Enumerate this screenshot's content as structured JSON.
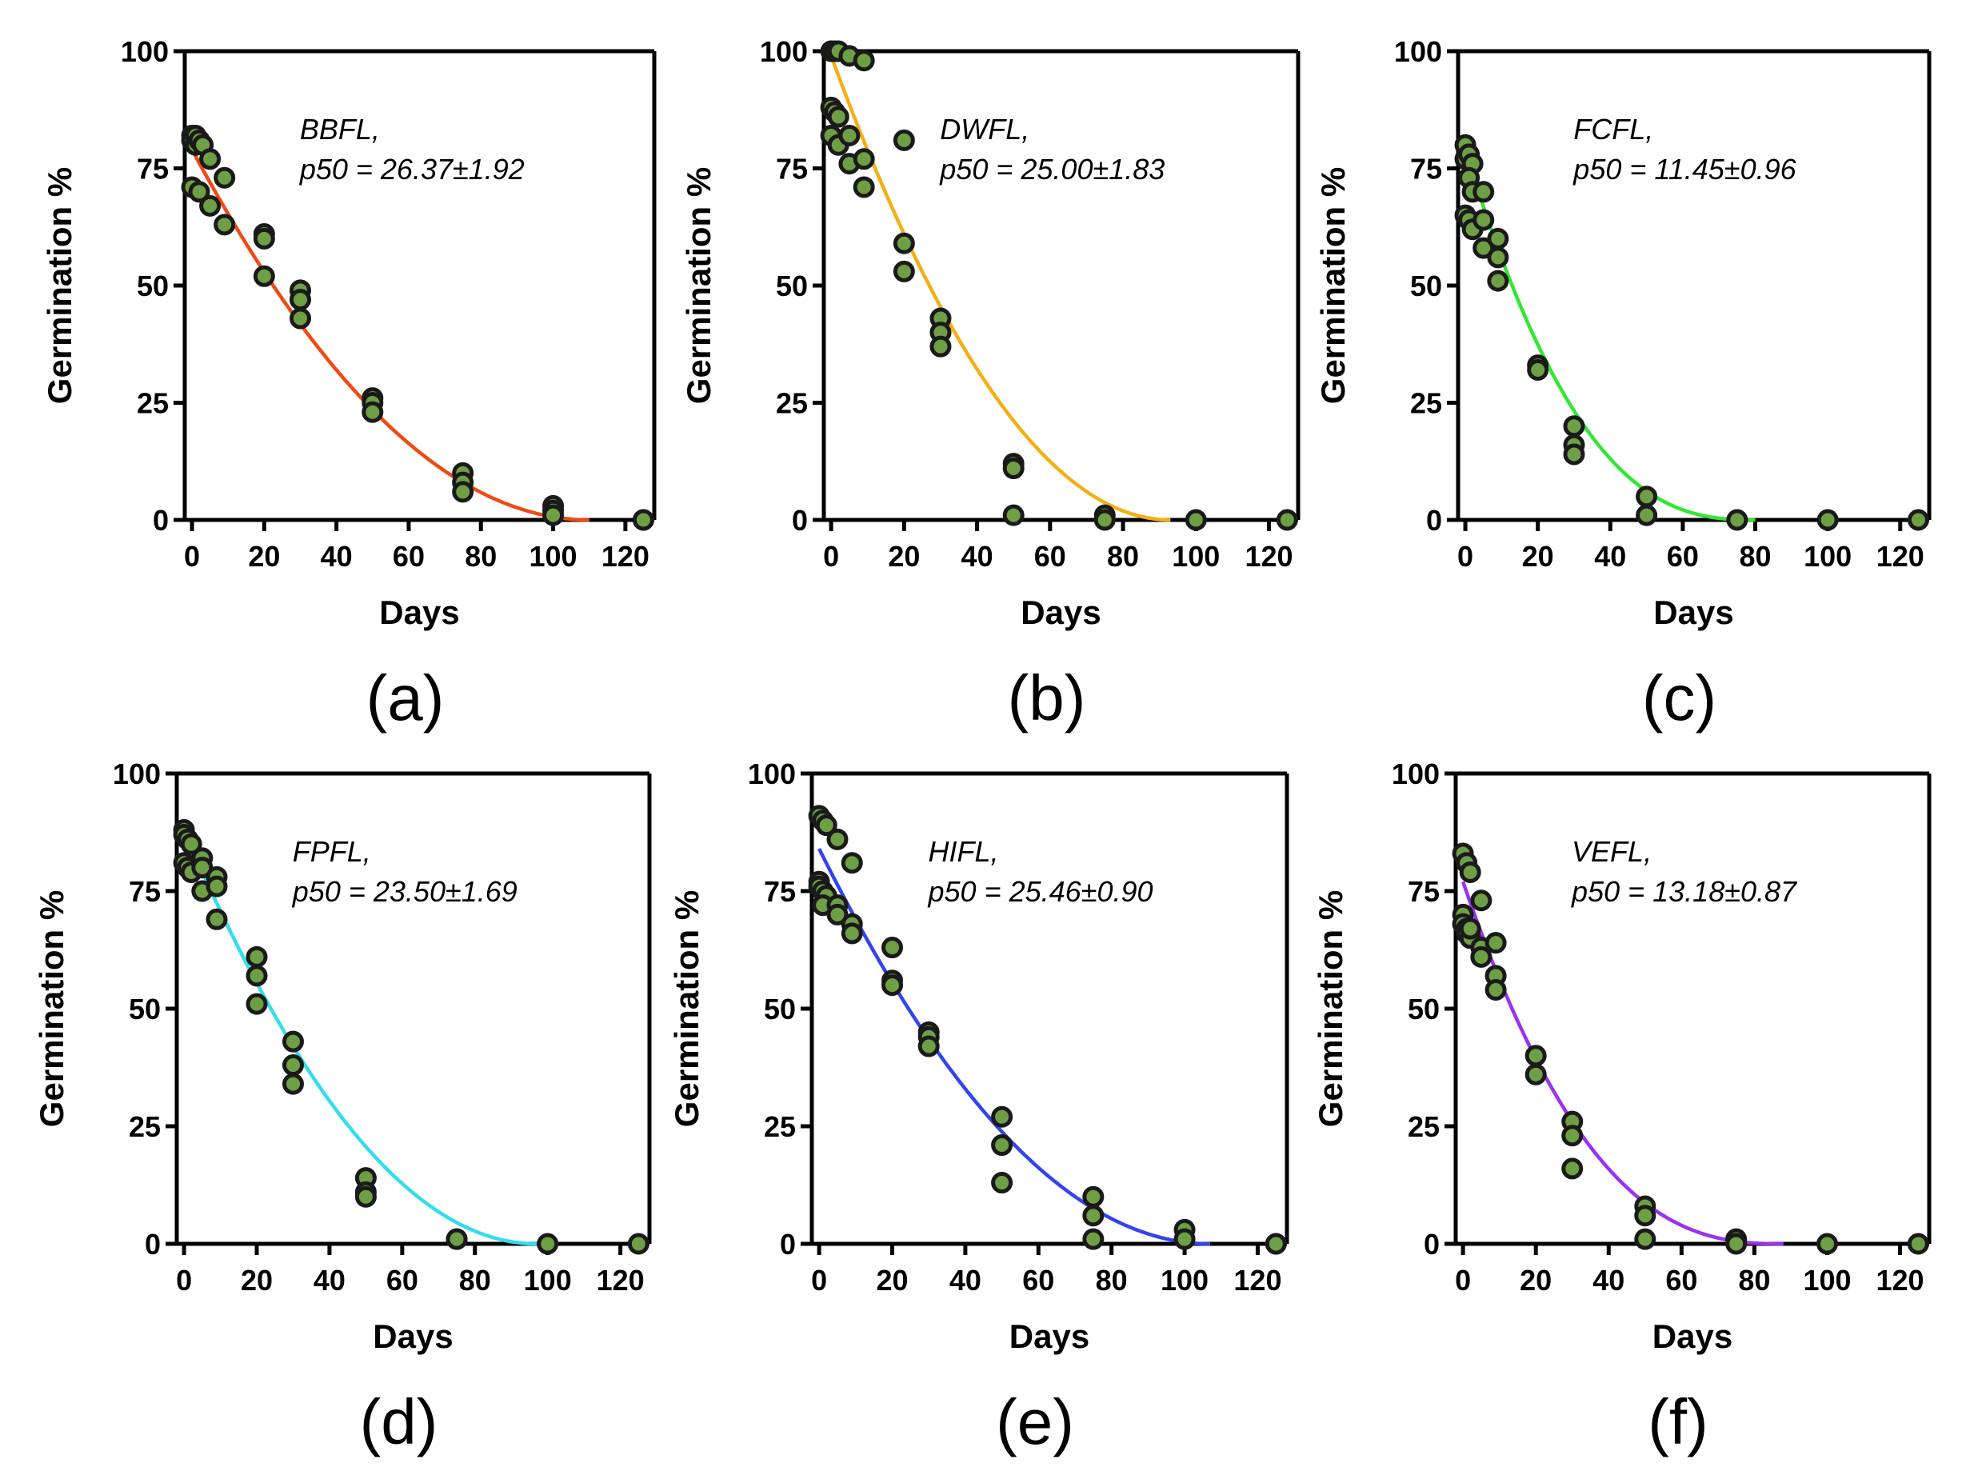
{
  "figure": {
    "marker_fill": "#6f9f45",
    "marker_stroke": "#1a1a1a",
    "axis_color": "#000000"
  },
  "chart_data": [
    {
      "type": "scatter",
      "panel_label": "(a)",
      "xlabel": "Days",
      "ylabel": "Germination %",
      "xlim": [
        -2,
        128
      ],
      "ylim": [
        0,
        100
      ],
      "xticks": [
        "0",
        "20",
        "40",
        "60",
        "80",
        "100",
        "120"
      ],
      "yticks": [
        "0",
        "25",
        "50",
        "75",
        "100"
      ],
      "annotation": [
        "BBFL,",
        "p50 = 26.37±1.92"
      ],
      "fit": {
        "color": "#f04a14",
        "a": 79,
        "end": 110,
        "power": 2.0
      },
      "points": [
        [
          0,
          82
        ],
        [
          0,
          81
        ],
        [
          1,
          82
        ],
        [
          1,
          80
        ],
        [
          2,
          81
        ],
        [
          3,
          80
        ],
        [
          0,
          71
        ],
        [
          2,
          70
        ],
        [
          5,
          77
        ],
        [
          5,
          67
        ],
        [
          9,
          73
        ],
        [
          9,
          63
        ],
        [
          20,
          61
        ],
        [
          20,
          60
        ],
        [
          20,
          52
        ],
        [
          30,
          49
        ],
        [
          30,
          47
        ],
        [
          30,
          43
        ],
        [
          50,
          26
        ],
        [
          50,
          25
        ],
        [
          50,
          23
        ],
        [
          75,
          10
        ],
        [
          75,
          8
        ],
        [
          75,
          6
        ],
        [
          100,
          3
        ],
        [
          100,
          2
        ],
        [
          100,
          1
        ],
        [
          125,
          0
        ],
        [
          125,
          0
        ]
      ]
    },
    {
      "type": "scatter",
      "panel_label": "(b)",
      "xlabel": "Days",
      "ylabel": "Germination %",
      "xlim": [
        -2,
        128
      ],
      "ylim": [
        0,
        100
      ],
      "xticks": [
        "0",
        "20",
        "40",
        "60",
        "80",
        "100",
        "120"
      ],
      "yticks": [
        "0",
        "25",
        "50",
        "75",
        "100"
      ],
      "annotation": [
        "DWFL,",
        "p50 = 25.00±1.83"
      ],
      "fit": {
        "color": "#f2b014",
        "a": 99,
        "end": 93,
        "power": 2.0
      },
      "points": [
        [
          0,
          100
        ],
        [
          1,
          100
        ],
        [
          2,
          100
        ],
        [
          5,
          99
        ],
        [
          9,
          98
        ],
        [
          0,
          88
        ],
        [
          1,
          87
        ],
        [
          2,
          86
        ],
        [
          0,
          82
        ],
        [
          2,
          80
        ],
        [
          5,
          82
        ],
        [
          5,
          76
        ],
        [
          9,
          77
        ],
        [
          9,
          71
        ],
        [
          20,
          81
        ],
        [
          20,
          59
        ],
        [
          20,
          53
        ],
        [
          30,
          43
        ],
        [
          30,
          40
        ],
        [
          30,
          37
        ],
        [
          50,
          12
        ],
        [
          50,
          11
        ],
        [
          50,
          1
        ],
        [
          75,
          1
        ],
        [
          75,
          0
        ],
        [
          100,
          0
        ],
        [
          125,
          0
        ]
      ]
    },
    {
      "type": "scatter",
      "panel_label": "(c)",
      "xlabel": "Days",
      "ylabel": "Germination %",
      "xlim": [
        -2,
        128
      ],
      "ylim": [
        0,
        100
      ],
      "xticks": [
        "0",
        "20",
        "40",
        "60",
        "80",
        "100",
        "120"
      ],
      "yticks": [
        "0",
        "25",
        "50",
        "75",
        "100"
      ],
      "annotation": [
        "FCFL,",
        "p50 = 11.45±0.96"
      ],
      "fit": {
        "color": "#33e633",
        "a": 79,
        "end": 80,
        "power": 2.6
      },
      "points": [
        [
          0,
          80
        ],
        [
          0,
          77
        ],
        [
          1,
          78
        ],
        [
          2,
          76
        ],
        [
          1,
          73
        ],
        [
          0,
          65
        ],
        [
          1,
          64
        ],
        [
          2,
          62
        ],
        [
          2,
          70
        ],
        [
          5,
          70
        ],
        [
          5,
          64
        ],
        [
          5,
          58
        ],
        [
          9,
          60
        ],
        [
          9,
          56
        ],
        [
          9,
          51
        ],
        [
          20,
          33
        ],
        [
          20,
          32
        ],
        [
          30,
          20
        ],
        [
          30,
          16
        ],
        [
          30,
          14
        ],
        [
          50,
          5
        ],
        [
          50,
          1
        ],
        [
          75,
          0
        ],
        [
          100,
          0
        ],
        [
          125,
          0
        ]
      ]
    },
    {
      "type": "scatter",
      "panel_label": "(d)",
      "xlabel": "Days",
      "ylabel": "Germination %",
      "xlim": [
        -2,
        128
      ],
      "ylim": [
        0,
        100
      ],
      "xticks": [
        "0",
        "20",
        "40",
        "60",
        "80",
        "100",
        "120"
      ],
      "yticks": [
        "0",
        "25",
        "50",
        "75",
        "100"
      ],
      "annotation": [
        "FPFL,",
        "p50 = 23.50±1.69"
      ],
      "fit": {
        "color": "#33ddee",
        "a": 88,
        "end": 97,
        "power": 2.0
      },
      "points": [
        [
          0,
          88
        ],
        [
          0,
          87
        ],
        [
          1,
          86
        ],
        [
          2,
          85
        ],
        [
          0,
          81
        ],
        [
          1,
          80
        ],
        [
          2,
          79
        ],
        [
          5,
          82
        ],
        [
          5,
          80
        ],
        [
          5,
          75
        ],
        [
          9,
          78
        ],
        [
          9,
          76
        ],
        [
          9,
          69
        ],
        [
          20,
          61
        ],
        [
          20,
          57
        ],
        [
          20,
          51
        ],
        [
          30,
          43
        ],
        [
          30,
          38
        ],
        [
          30,
          34
        ],
        [
          50,
          14
        ],
        [
          50,
          11
        ],
        [
          50,
          10
        ],
        [
          75,
          1
        ],
        [
          75,
          1
        ],
        [
          100,
          0
        ],
        [
          125,
          0
        ]
      ]
    },
    {
      "type": "scatter",
      "panel_label": "(e)",
      "xlabel": "Days",
      "ylabel": "Germination %",
      "xlim": [
        -2,
        128
      ],
      "ylim": [
        0,
        100
      ],
      "xticks": [
        "0",
        "20",
        "40",
        "60",
        "80",
        "100",
        "120"
      ],
      "yticks": [
        "0",
        "25",
        "50",
        "75",
        "100"
      ],
      "annotation": [
        "HIFL,",
        "p50 = 25.46±0.90"
      ],
      "fit": {
        "color": "#3344ee",
        "a": 84,
        "end": 107,
        "power": 2.0
      },
      "points": [
        [
          0,
          91
        ],
        [
          1,
          90
        ],
        [
          2,
          89
        ],
        [
          5,
          86
        ],
        [
          9,
          81
        ],
        [
          0,
          77
        ],
        [
          0,
          76
        ],
        [
          1,
          75
        ],
        [
          2,
          74
        ],
        [
          1,
          72
        ],
        [
          5,
          72
        ],
        [
          5,
          70
        ],
        [
          9,
          68
        ],
        [
          9,
          66
        ],
        [
          20,
          63
        ],
        [
          20,
          56
        ],
        [
          20,
          55
        ],
        [
          30,
          45
        ],
        [
          30,
          44
        ],
        [
          30,
          42
        ],
        [
          50,
          27
        ],
        [
          50,
          21
        ],
        [
          50,
          13
        ],
        [
          75,
          10
        ],
        [
          75,
          6
        ],
        [
          75,
          1
        ],
        [
          100,
          3
        ],
        [
          100,
          1
        ],
        [
          125,
          0
        ],
        [
          125,
          0
        ]
      ]
    },
    {
      "type": "scatter",
      "panel_label": "(f)",
      "xlabel": "Days",
      "ylabel": "Germination %",
      "xlim": [
        -2,
        128
      ],
      "ylim": [
        0,
        100
      ],
      "xticks": [
        "0",
        "20",
        "40",
        "60",
        "80",
        "100",
        "120"
      ],
      "yticks": [
        "0",
        "25",
        "50",
        "75",
        "100"
      ],
      "annotation": [
        "VEFL,",
        "p50 = 13.18±0.87"
      ],
      "fit": {
        "color": "#9933ee",
        "a": 77,
        "end": 88,
        "power": 2.6
      },
      "points": [
        [
          0,
          83
        ],
        [
          1,
          81
        ],
        [
          2,
          79
        ],
        [
          0,
          70
        ],
        [
          0,
          68
        ],
        [
          1,
          67
        ],
        [
          1,
          66
        ],
        [
          2,
          65
        ],
        [
          2,
          67
        ],
        [
          5,
          73
        ],
        [
          5,
          63
        ],
        [
          5,
          61
        ],
        [
          9,
          64
        ],
        [
          9,
          57
        ],
        [
          9,
          54
        ],
        [
          20,
          40
        ],
        [
          20,
          36
        ],
        [
          30,
          26
        ],
        [
          30,
          23
        ],
        [
          30,
          16
        ],
        [
          50,
          8
        ],
        [
          50,
          6
        ],
        [
          50,
          1
        ],
        [
          75,
          1
        ],
        [
          75,
          0
        ],
        [
          100,
          0
        ],
        [
          125,
          0
        ]
      ]
    }
  ]
}
